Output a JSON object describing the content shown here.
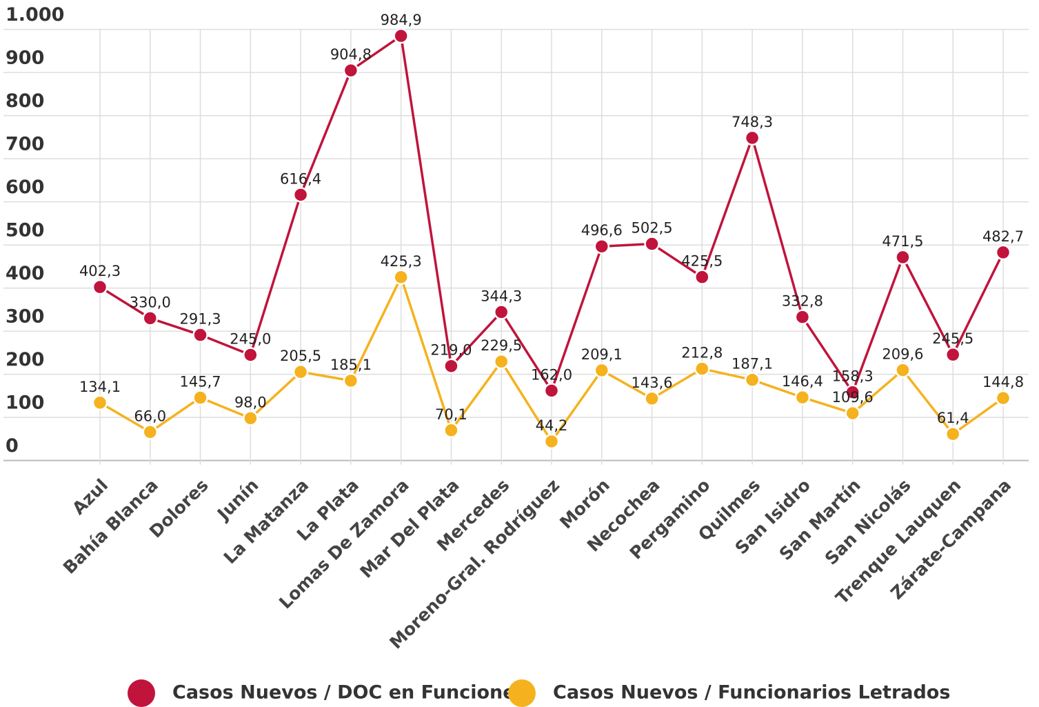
{
  "chart_data": {
    "type": "line",
    "categories": [
      "Azul",
      "Bahía Blanca",
      "Dolores",
      "Junín",
      "La Matanza",
      "La Plata",
      "Lomas De Zamora",
      "Mar Del Plata",
      "Mercedes",
      "Moreno-Gral. Rodríguez",
      "Morón",
      "Necochea",
      "Pergamino",
      "Quilmes",
      "San Isidro",
      "San Martín",
      "San Nicolás",
      "Trenque Lauquen",
      "Zárate-Campana"
    ],
    "series": [
      {
        "name": "Casos Nuevos / DOC en Funciones",
        "color": "#c0143c",
        "values": [
          402.3,
          330.0,
          291.3,
          245.0,
          616.4,
          904.8,
          984.9,
          219.0,
          344.3,
          162.0,
          496.6,
          502.5,
          425.5,
          748.3,
          332.8,
          158.3,
          471.5,
          245.5,
          482.7
        ],
        "value_labels": [
          "402,3",
          "330,0",
          "291,3",
          "245,0",
          "616,4",
          "904,8",
          "984,9",
          "219,0",
          "344,3",
          "162,0",
          "496,6",
          "502,5",
          "425,5",
          "748,3",
          "332,8",
          "158,3",
          "471,5",
          "245,5",
          "482,7"
        ]
      },
      {
        "name": "Casos Nuevos / Funcionarios Letrados",
        "color": "#f5b21e",
        "values": [
          134.1,
          66.0,
          145.7,
          98.0,
          205.5,
          185.1,
          425.3,
          70.1,
          229.5,
          44.2,
          209.1,
          143.6,
          212.8,
          187.1,
          146.4,
          109.6,
          209.6,
          61.4,
          144.8
        ],
        "value_labels": [
          "134,1",
          "66,0",
          "145,7",
          "98,0",
          "205,5",
          "185,1",
          "425,3",
          "70,1",
          "229,5",
          "44,2",
          "209,1",
          "143,6",
          "212,8",
          "187,1",
          "146,4",
          "109,6",
          "209,6",
          "61,4",
          "144,8"
        ]
      }
    ],
    "ylim": [
      0,
      1000
    ],
    "yticks": [
      0,
      100,
      200,
      300,
      400,
      500,
      600,
      700,
      800,
      900,
      {
        "value": 1000,
        "label": "1.000"
      }
    ],
    "grid": true,
    "legend": "bottom"
  }
}
